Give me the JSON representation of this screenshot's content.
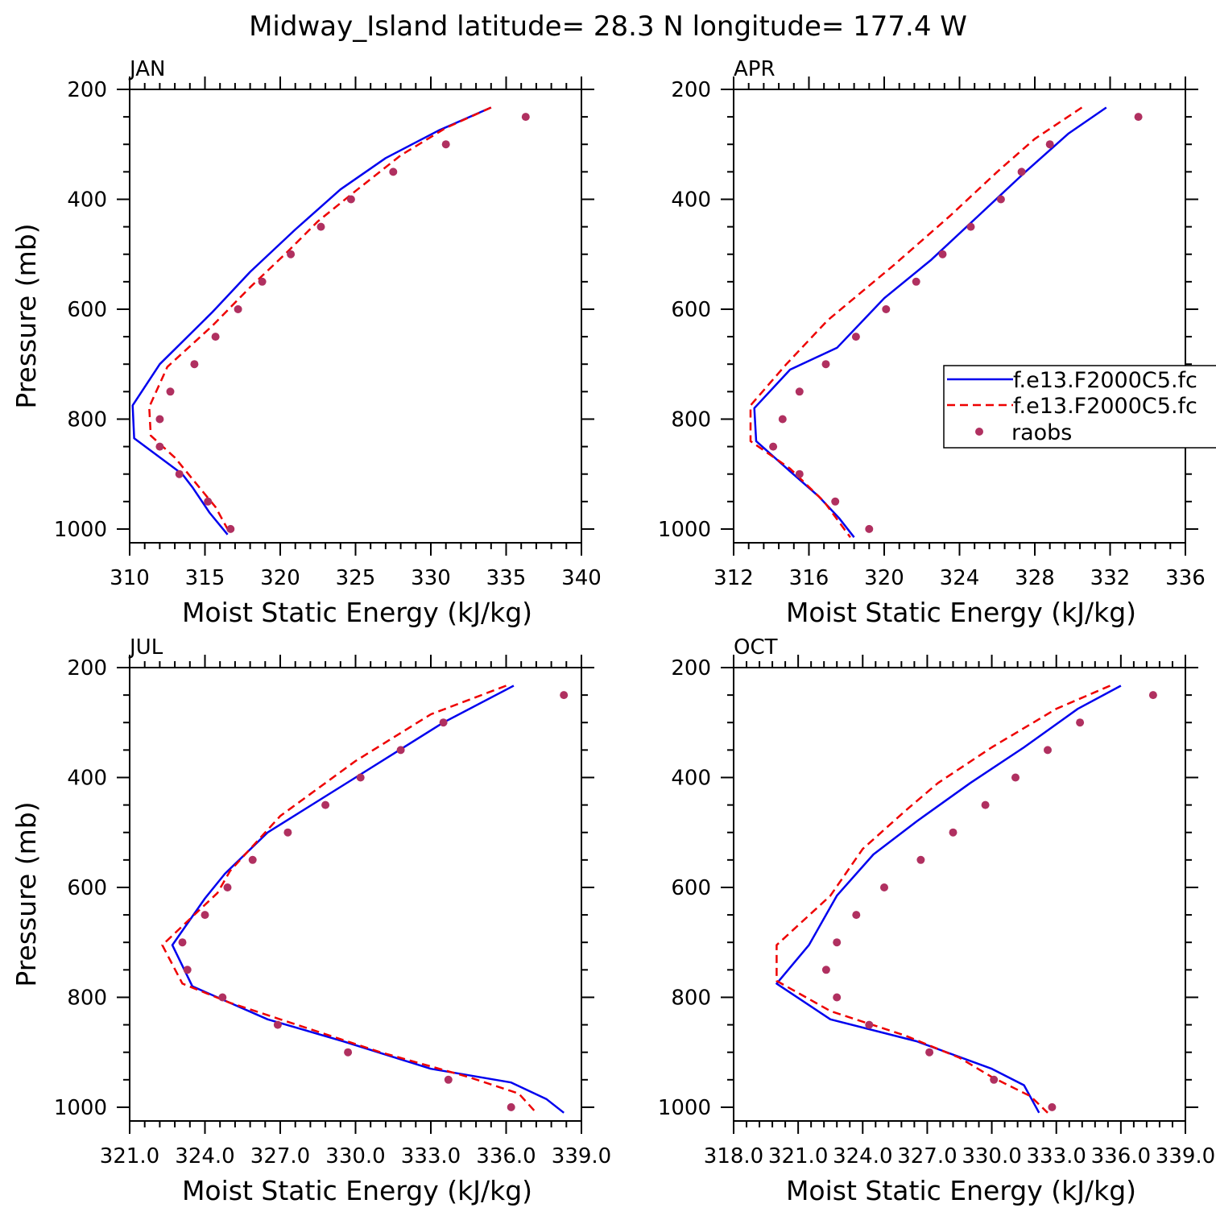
{
  "title": "Midway_Island  latitude= 28.3 N longitude= 177.4 W",
  "colors": {
    "model1": "#0000ee",
    "model2": "#ee0000",
    "raobs": "#b03060"
  },
  "legend": {
    "entries": [
      "f.e13.F2000C5.fc",
      "f.e13.F2000C5.fc",
      "raobs"
    ],
    "location": "right of APR panel, clipped at figure edge"
  },
  "chart_data": [
    {
      "type": "line",
      "label": "JAN",
      "xlabel": "Moist Static Energy (kJ/kg)",
      "ylabel": "Pressure (mb)",
      "xlim": [
        310,
        340
      ],
      "ylim": [
        1025,
        200
      ],
      "xticks": [
        "310",
        "315",
        "320",
        "325",
        "330",
        "335",
        "340"
      ],
      "yticks": [
        "200",
        "400",
        "600",
        "800",
        "1000"
      ],
      "series": [
        {
          "name": "f.e13.F2000C5.fc (solid)",
          "style": "solid",
          "points": [
            [
              334.0,
              233
            ],
            [
              330.5,
              275
            ],
            [
              327.0,
              325
            ],
            [
              324.0,
              382
            ],
            [
              321.0,
              455
            ],
            [
              318.0,
              532
            ],
            [
              315.5,
              605
            ],
            [
              312.0,
              700
            ],
            [
              310.2,
              775
            ],
            [
              310.3,
              835
            ],
            [
              313.5,
              900
            ],
            [
              314.2,
              925
            ],
            [
              315.3,
              970
            ],
            [
              316.5,
              1010
            ]
          ]
        },
        {
          "name": "f.e13.F2000C5.fc (dashed)",
          "style": "dashed",
          "points": [
            [
              334.0,
              233
            ],
            [
              331.0,
              270
            ],
            [
              328.0,
              320
            ],
            [
              325.0,
              385
            ],
            [
              322.5,
              440
            ],
            [
              320.5,
              495
            ],
            [
              318.0,
              560
            ],
            [
              315.5,
              630
            ],
            [
              312.5,
              705
            ],
            [
              311.3,
              778
            ],
            [
              311.4,
              830
            ],
            [
              313.0,
              870
            ],
            [
              314.5,
              920
            ],
            [
              315.7,
              960
            ],
            [
              316.7,
              1010
            ]
          ]
        }
      ],
      "raobs": [
        [
          336.3,
          250
        ],
        [
          331.0,
          300
        ],
        [
          327.5,
          350
        ],
        [
          324.7,
          400
        ],
        [
          322.7,
          450
        ],
        [
          320.7,
          500
        ],
        [
          318.8,
          550
        ],
        [
          317.2,
          600
        ],
        [
          315.7,
          650
        ],
        [
          314.3,
          700
        ],
        [
          312.7,
          750
        ],
        [
          312.0,
          800
        ],
        [
          312.0,
          850
        ],
        [
          313.3,
          900
        ],
        [
          315.2,
          950
        ],
        [
          316.7,
          1000
        ]
      ]
    },
    {
      "type": "line",
      "label": "APR",
      "xlabel": "Moist Static Energy (kJ/kg)",
      "ylabel": "Pressure (mb)",
      "xlim": [
        312,
        336
      ],
      "ylim": [
        1025,
        200
      ],
      "xticks": [
        "312",
        "316",
        "320",
        "324",
        "328",
        "332",
        "336"
      ],
      "yticks": [
        "200",
        "400",
        "600",
        "800",
        "1000"
      ],
      "series": [
        {
          "name": "f.e13.F2000C5.fc (solid)",
          "style": "solid",
          "points": [
            [
              331.8,
              233
            ],
            [
              329.8,
              280
            ],
            [
              327.5,
              350
            ],
            [
              325.0,
              430
            ],
            [
              322.5,
              510
            ],
            [
              320.0,
              580
            ],
            [
              317.5,
              670
            ],
            [
              315.0,
              710
            ],
            [
              313.1,
              780
            ],
            [
              313.2,
              840
            ],
            [
              315.0,
              895
            ],
            [
              316.5,
              940
            ],
            [
              317.6,
              980
            ],
            [
              318.4,
              1015
            ]
          ]
        },
        {
          "name": "f.e13.F2000C5.fc (dashed)",
          "style": "dashed",
          "points": [
            [
              330.5,
              233
            ],
            [
              328.0,
              290
            ],
            [
              326.0,
              350
            ],
            [
              323.5,
              430
            ],
            [
              320.5,
              520
            ],
            [
              317.0,
              620
            ],
            [
              314.8,
              700
            ],
            [
              312.9,
              775
            ],
            [
              312.9,
              840
            ],
            [
              315.0,
              890
            ],
            [
              316.8,
              950
            ],
            [
              318.2,
              1015
            ]
          ]
        }
      ],
      "raobs": [
        [
          333.5,
          250
        ],
        [
          328.8,
          300
        ],
        [
          327.3,
          350
        ],
        [
          326.2,
          400
        ],
        [
          324.6,
          450
        ],
        [
          323.1,
          500
        ],
        [
          321.7,
          550
        ],
        [
          320.1,
          600
        ],
        [
          318.5,
          650
        ],
        [
          316.9,
          700
        ],
        [
          315.5,
          750
        ],
        [
          314.6,
          800
        ],
        [
          314.1,
          850
        ],
        [
          315.5,
          900
        ],
        [
          317.4,
          950
        ],
        [
          319.2,
          1000
        ]
      ]
    },
    {
      "type": "line",
      "label": "JUL",
      "xlabel": "Moist Static Energy (kJ/kg)",
      "ylabel": "Pressure (mb)",
      "xlim": [
        321.0,
        339.0
      ],
      "ylim": [
        1025,
        200
      ],
      "xticks": [
        "321.0",
        "324.0",
        "327.0",
        "330.0",
        "333.0",
        "336.0",
        "339.0"
      ],
      "yticks": [
        "200",
        "400",
        "600",
        "800",
        "1000"
      ],
      "series": [
        {
          "name": "f.e13.F2000C5.fc (solid)",
          "style": "solid",
          "points": [
            [
              336.3,
              233
            ],
            [
              333.5,
              300
            ],
            [
              330.0,
              400
            ],
            [
              326.5,
              500
            ],
            [
              324.8,
              575
            ],
            [
              324.0,
              620
            ],
            [
              322.7,
              705
            ],
            [
              323.5,
              780
            ],
            [
              324.5,
              800
            ],
            [
              326.5,
              840
            ],
            [
              329.5,
              880
            ],
            [
              333.0,
              930
            ],
            [
              336.2,
              955
            ],
            [
              337.6,
              985
            ],
            [
              338.3,
              1010
            ]
          ]
        },
        {
          "name": "f.e13.F2000C5.fc (dashed)",
          "style": "dashed",
          "points": [
            [
              336.0,
              233
            ],
            [
              333.0,
              285
            ],
            [
              330.0,
              370
            ],
            [
              327.0,
              470
            ],
            [
              325.0,
              570
            ],
            [
              324.5,
              610
            ],
            [
              322.3,
              705
            ],
            [
              323.1,
              775
            ],
            [
              325.0,
              810
            ],
            [
              327.0,
              840
            ],
            [
              331.0,
              900
            ],
            [
              334.5,
              945
            ],
            [
              336.5,
              975
            ],
            [
              337.2,
              1010
            ]
          ]
        }
      ],
      "raobs": [
        [
          338.3,
          250
        ],
        [
          333.5,
          300
        ],
        [
          331.8,
          350
        ],
        [
          330.2,
          400
        ],
        [
          328.8,
          450
        ],
        [
          327.3,
          500
        ],
        [
          325.9,
          550
        ],
        [
          324.9,
          600
        ],
        [
          324.0,
          650
        ],
        [
          323.1,
          700
        ],
        [
          323.3,
          750
        ],
        [
          324.7,
          800
        ],
        [
          326.9,
          850
        ],
        [
          329.7,
          900
        ],
        [
          333.7,
          950
        ],
        [
          336.2,
          1000
        ]
      ]
    },
    {
      "type": "line",
      "label": "OCT",
      "xlabel": "Moist Static Energy (kJ/kg)",
      "ylabel": "Pressure (mb)",
      "xlim": [
        318.0,
        339.0
      ],
      "ylim": [
        1025,
        200
      ],
      "xticks": [
        "318.0",
        "321.0",
        "324.0",
        "327.0",
        "330.0",
        "333.0",
        "336.0",
        "339.0"
      ],
      "yticks": [
        "200",
        "400",
        "600",
        "800",
        "1000"
      ],
      "series": [
        {
          "name": "f.e13.F2000C5.fc (solid)",
          "style": "solid",
          "points": [
            [
              336.0,
              233
            ],
            [
              334.0,
              275
            ],
            [
              331.5,
              345
            ],
            [
              329.0,
              410
            ],
            [
              326.5,
              480
            ],
            [
              324.5,
              540
            ],
            [
              322.8,
              615
            ],
            [
              321.5,
              705
            ],
            [
              320.0,
              775
            ],
            [
              322.5,
              840
            ],
            [
              326.5,
              880
            ],
            [
              330.0,
              930
            ],
            [
              331.5,
              960
            ],
            [
              332.2,
              1010
            ]
          ]
        },
        {
          "name": "f.e13.F2000C5.fc (dashed)",
          "style": "dashed",
          "points": [
            [
              335.5,
              233
            ],
            [
              333.0,
              275
            ],
            [
              330.0,
              345
            ],
            [
              327.5,
              410
            ],
            [
              326.0,
              460
            ],
            [
              324.0,
              530
            ],
            [
              322.5,
              615
            ],
            [
              320.0,
              705
            ],
            [
              320.0,
              770
            ],
            [
              322.5,
              825
            ],
            [
              326.0,
              870
            ],
            [
              328.5,
              910
            ],
            [
              330.0,
              945
            ],
            [
              331.8,
              980
            ],
            [
              332.6,
              1010
            ]
          ]
        }
      ],
      "raobs": [
        [
          337.5,
          250
        ],
        [
          334.1,
          300
        ],
        [
          332.6,
          350
        ],
        [
          331.1,
          400
        ],
        [
          329.7,
          450
        ],
        [
          328.2,
          500
        ],
        [
          326.7,
          550
        ],
        [
          325.0,
          600
        ],
        [
          323.7,
          650
        ],
        [
          322.8,
          700
        ],
        [
          322.3,
          750
        ],
        [
          322.8,
          800
        ],
        [
          324.3,
          850
        ],
        [
          327.1,
          900
        ],
        [
          330.1,
          950
        ],
        [
          332.8,
          1000
        ]
      ]
    }
  ]
}
